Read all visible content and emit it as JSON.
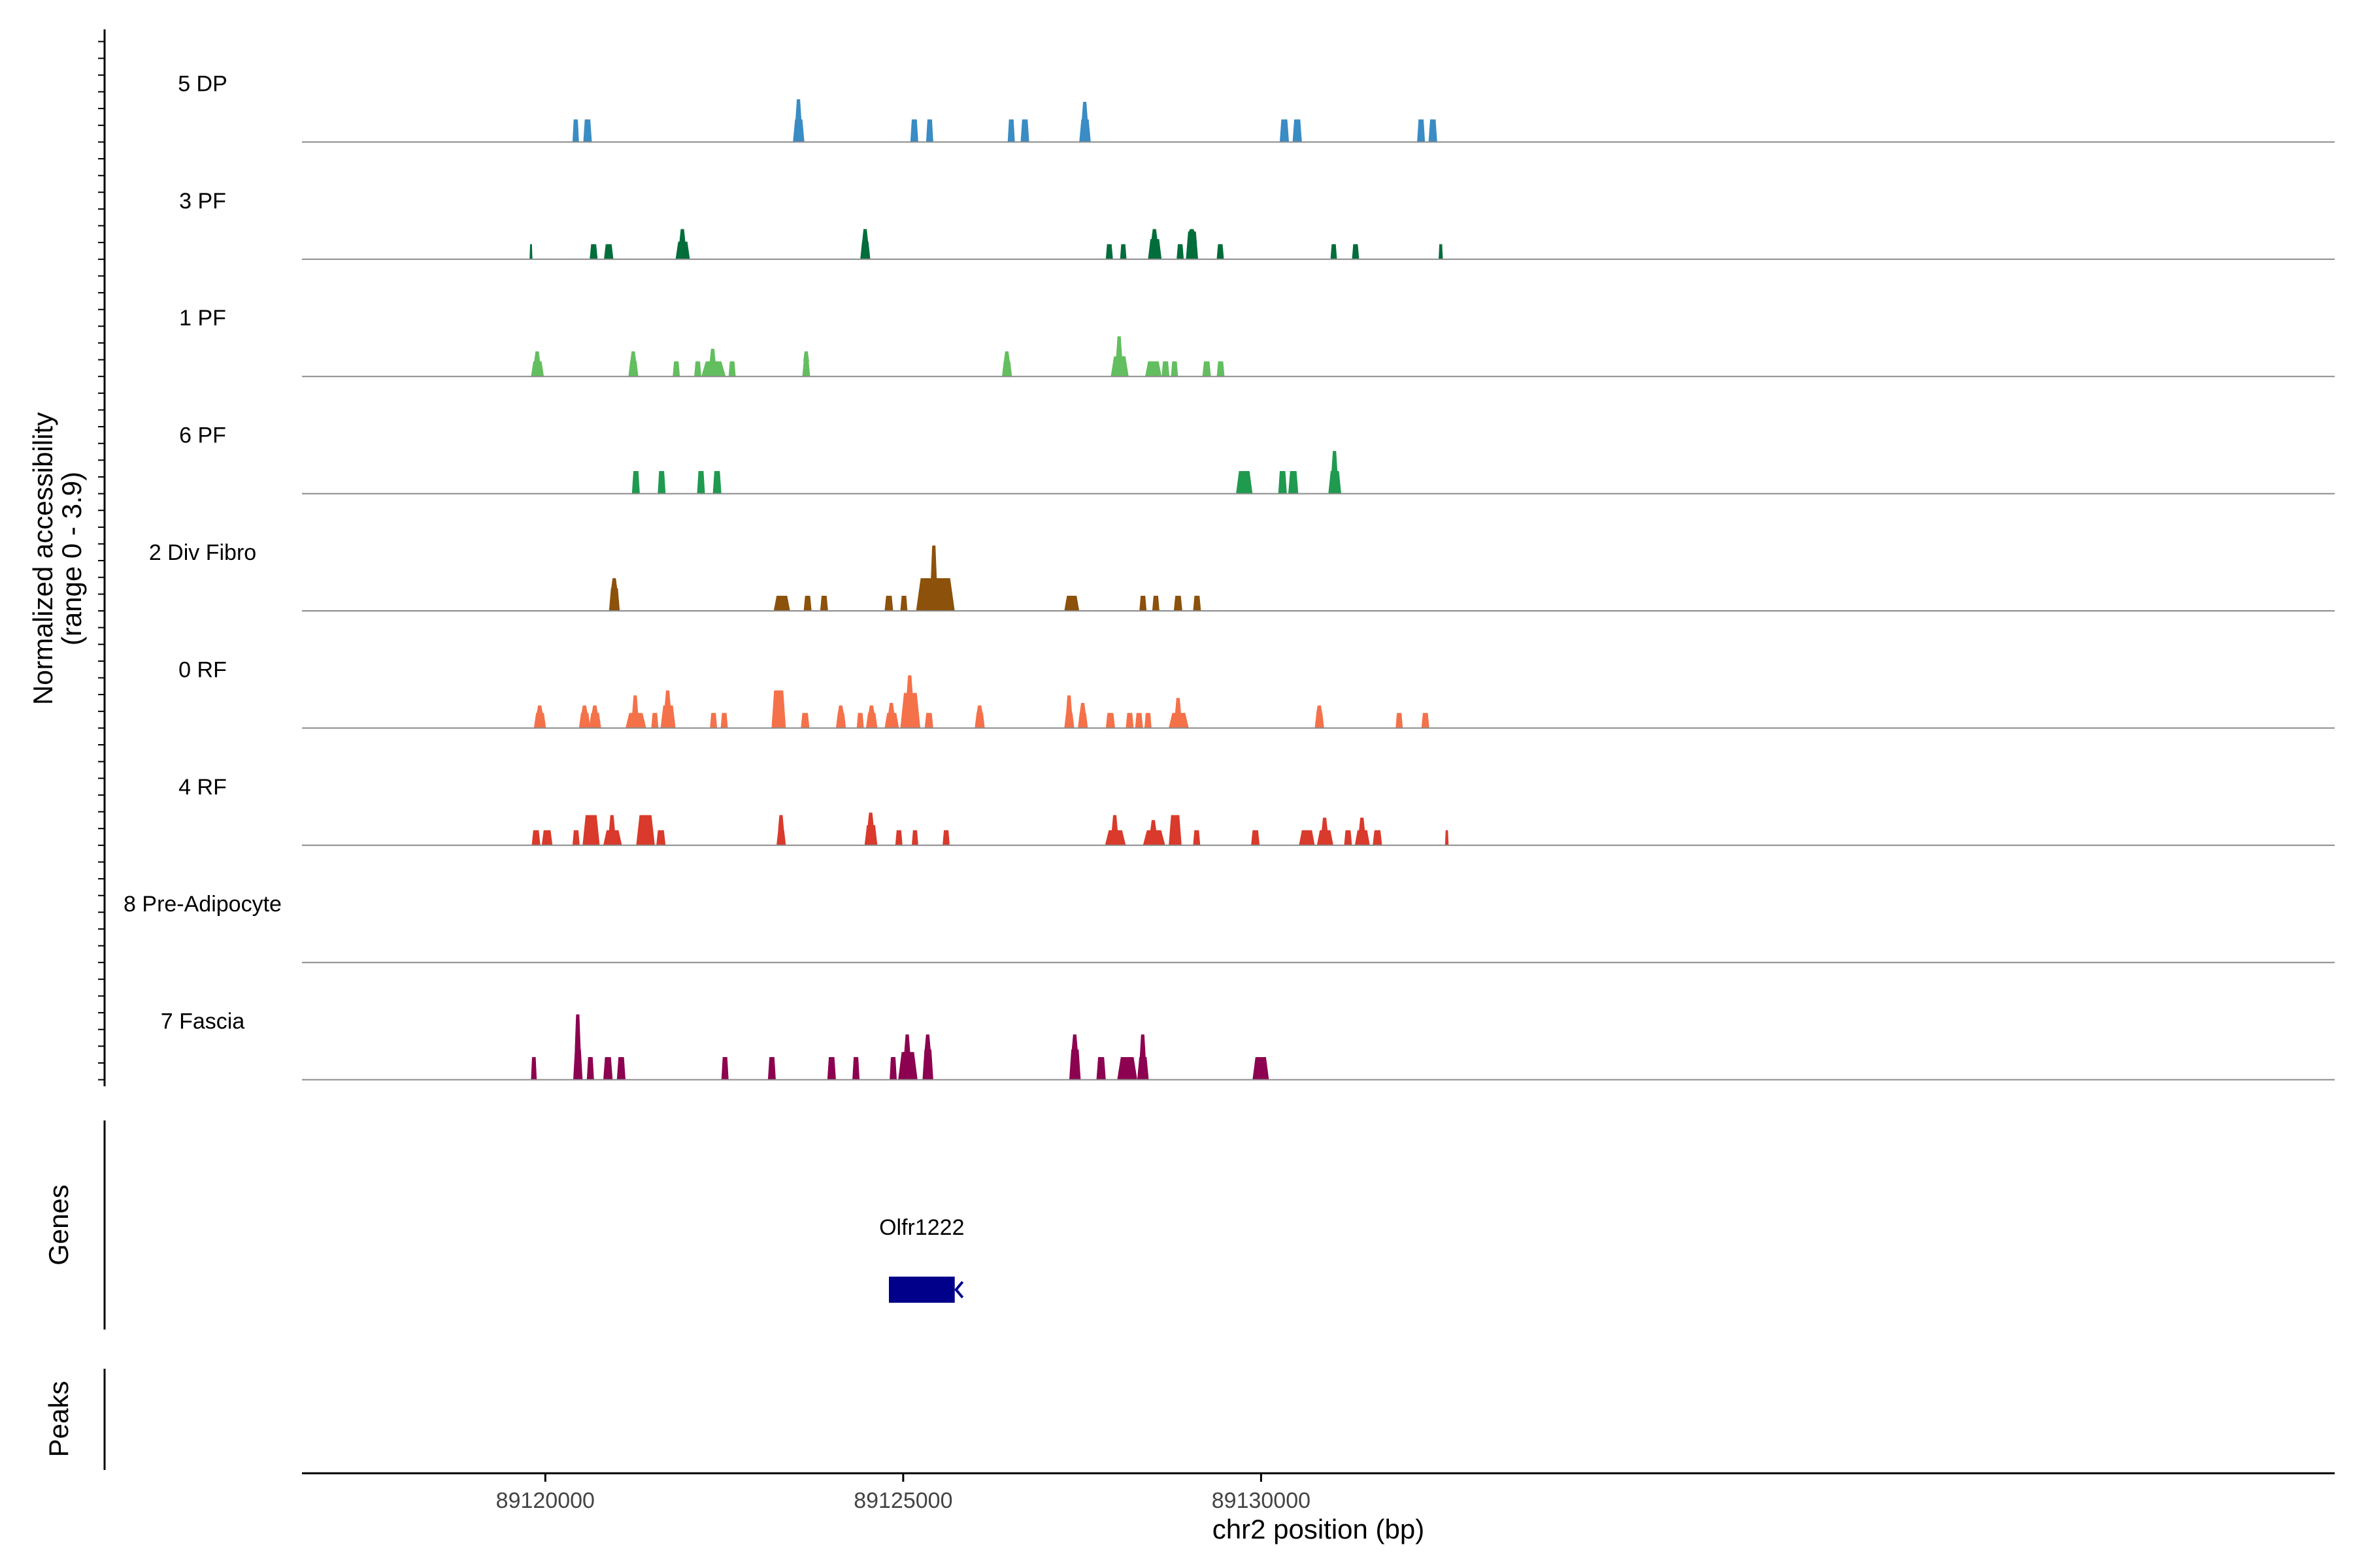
{
  "chart_data": {
    "type": "area",
    "title": "",
    "xlabel": "chr2 position (bp)",
    "ylabel_line1": "Normalized accessibility",
    "ylabel_line2": "(range 0 - 3.9)",
    "xlim": [
      89116600,
      89145000
    ],
    "x_ticks": [
      89120000,
      89125000,
      89130000
    ],
    "x_tick_labels": [
      "89120000",
      "89125000",
      "89130000"
    ],
    "y_range": [
      0,
      3.9
    ],
    "genes_label": "Genes",
    "peaks_label": "Peaks",
    "genes": [
      {
        "name": "Olfr1222",
        "start": 89124800,
        "end": 89125720,
        "strand": "-",
        "color": "#00008B"
      }
    ],
    "tracks": [
      {
        "name": "5 DP",
        "color": "#3A8CC4",
        "peaks": [
          [
            89120380,
            89120470,
            0.9
          ],
          [
            89120530,
            89120650,
            0.9
          ],
          [
            89123460,
            89123620,
            0.9,
            1.7
          ],
          [
            89125100,
            89125210,
            0.9
          ],
          [
            89125320,
            89125420,
            0.9
          ],
          [
            89126460,
            89126560,
            0.9
          ],
          [
            89126640,
            89126760,
            0.9
          ],
          [
            89127460,
            89127620,
            0.9,
            1.6
          ],
          [
            89130260,
            89130390,
            0.9
          ],
          [
            89130440,
            89130570,
            0.9
          ],
          [
            89132180,
            89132290,
            0.9
          ],
          [
            89132340,
            89132460,
            0.9
          ]
        ]
      },
      {
        "name": "3 PF",
        "color": "#006D3B",
        "peaks": [
          [
            89119780,
            89119820,
            0.6
          ],
          [
            89120620,
            89120730,
            0.6
          ],
          [
            89120820,
            89120950,
            0.6
          ],
          [
            89121820,
            89122020,
            0.7,
            1.2
          ],
          [
            89124400,
            89124540,
            0.7,
            1.2
          ],
          [
            89127830,
            89127930,
            0.6
          ],
          [
            89128030,
            89128120,
            0.6
          ],
          [
            89128420,
            89128610,
            0.8,
            1.2
          ],
          [
            89128820,
            89128920,
            0.6
          ],
          [
            89128950,
            89129120,
            1.1,
            1.2
          ],
          [
            89129380,
            89129480,
            0.6
          ],
          [
            89130970,
            89131060,
            0.6
          ],
          [
            89131270,
            89131370,
            0.6
          ],
          [
            89132480,
            89132540,
            0.6
          ]
        ]
      },
      {
        "name": "1 PF",
        "color": "#63BE5F",
        "peaks": [
          [
            89119800,
            89119980,
            0.6,
            1.0
          ],
          [
            89121160,
            89121300,
            0.6,
            1.0
          ],
          [
            89121780,
            89121880,
            0.6
          ],
          [
            89122080,
            89122180,
            0.6
          ],
          [
            89122180,
            89122520,
            0.6,
            1.1
          ],
          [
            89122560,
            89122660,
            0.6
          ],
          [
            89123590,
            89123700,
            0.6,
            1.0
          ],
          [
            89126380,
            89126520,
            0.6,
            1.0
          ],
          [
            89127900,
            89128150,
            0.8,
            1.6
          ],
          [
            89128380,
            89128610,
            0.6
          ],
          [
            89128610,
            89128720,
            0.6
          ],
          [
            89128740,
            89128840,
            0.6
          ],
          [
            89129180,
            89129300,
            0.6
          ],
          [
            89129380,
            89129490,
            0.6
          ]
        ]
      },
      {
        "name": "6 PF",
        "color": "#1F9A4F",
        "peaks": [
          [
            89121210,
            89121320,
            0.9
          ],
          [
            89121570,
            89121680,
            0.9
          ],
          [
            89122120,
            89122230,
            0.9
          ],
          [
            89122340,
            89122460,
            0.9
          ],
          [
            89129650,
            89129880,
            0.9
          ],
          [
            89130240,
            89130360,
            0.9
          ],
          [
            89130380,
            89130520,
            0.9
          ],
          [
            89130940,
            89131120,
            0.9,
            1.7
          ]
        ]
      },
      {
        "name": "2 Div Fibro",
        "color": "#8C510A",
        "peaks": [
          [
            89120890,
            89121040,
            0.9,
            1.3
          ],
          [
            89123190,
            89123420,
            0.6
          ],
          [
            89123610,
            89123720,
            0.6
          ],
          [
            89123840,
            89123950,
            0.6
          ],
          [
            89124740,
            89124860,
            0.6
          ],
          [
            89124960,
            89125060,
            0.6
          ],
          [
            89125180,
            89125720,
            1.3,
            2.6
          ],
          [
            89127250,
            89127460,
            0.6
          ],
          [
            89128300,
            89128400,
            0.6
          ],
          [
            89128480,
            89128580,
            0.6
          ],
          [
            89128780,
            89128900,
            0.6
          ],
          [
            89129050,
            89129160,
            0.6
          ]
        ]
      },
      {
        "name": "0 RF",
        "color": "#F4714A",
        "peaks": [
          [
            89119840,
            89120010,
            0.6,
            0.9
          ],
          [
            89120470,
            89120630,
            0.6,
            0.9
          ],
          [
            89120610,
            89120780,
            0.6,
            0.9
          ],
          [
            89121120,
            89121410,
            0.6,
            1.3
          ],
          [
            89121480,
            89121580,
            0.6
          ],
          [
            89121610,
            89121820,
            0.9,
            1.5
          ],
          [
            89122300,
            89122400,
            0.6
          ],
          [
            89122450,
            89122550,
            0.6
          ],
          [
            89123160,
            89123360,
            1.5
          ],
          [
            89123570,
            89123690,
            0.6
          ],
          [
            89124060,
            89124200,
            0.6,
            0.9
          ],
          [
            89124350,
            89124450,
            0.6
          ],
          [
            89124480,
            89124640,
            0.6,
            0.9
          ],
          [
            89124740,
            89124940,
            0.6,
            1.0
          ],
          [
            89124960,
            89125240,
            1.4,
            2.1
          ],
          [
            89125300,
            89125420,
            0.6
          ],
          [
            89126000,
            89126140,
            0.6,
            0.9
          ],
          [
            89127250,
            89127390,
            0.6,
            1.3
          ],
          [
            89127440,
            89127580,
            0.6,
            1.0
          ],
          [
            89127830,
            89127960,
            0.6
          ],
          [
            89128110,
            89128220,
            0.6
          ],
          [
            89128240,
            89128350,
            0.6
          ],
          [
            89128370,
            89128470,
            0.6
          ],
          [
            89128710,
            89128990,
            0.6,
            1.2
          ],
          [
            89130750,
            89130880,
            0.6,
            0.9
          ],
          [
            89131880,
            89131980,
            0.6
          ],
          [
            89132240,
            89132350,
            0.6
          ]
        ]
      },
      {
        "name": "4 RF",
        "color": "#D93A2B",
        "peaks": [
          [
            89119810,
            89119930,
            0.6
          ],
          [
            89119950,
            89120100,
            0.6
          ],
          [
            89120380,
            89120480,
            0.6
          ],
          [
            89120520,
            89120760,
            1.2
          ],
          [
            89120810,
            89121070,
            0.6,
            1.2
          ],
          [
            89121270,
            89121530,
            1.2
          ],
          [
            89121550,
            89121680,
            0.6
          ],
          [
            89123230,
            89123360,
            0.6,
            1.2
          ],
          [
            89124460,
            89124640,
            0.8,
            1.3
          ],
          [
            89124890,
            89124990,
            0.6
          ],
          [
            89125120,
            89125210,
            0.6
          ],
          [
            89125550,
            89125650,
            0.6
          ],
          [
            89127820,
            89128110,
            0.6,
            1.2
          ],
          [
            89128350,
            89128660,
            0.6,
            1.0
          ],
          [
            89128710,
            89128890,
            1.2
          ],
          [
            89129050,
            89129150,
            0.6
          ],
          [
            89129860,
            89129980,
            0.6
          ],
          [
            89130530,
            89130750,
            0.6
          ],
          [
            89130780,
            89131010,
            0.6,
            1.1
          ],
          [
            89131160,
            89131270,
            0.6
          ],
          [
            89131310,
            89131520,
            0.6,
            1.1
          ],
          [
            89131560,
            89131690,
            0.6
          ],
          [
            89132570,
            89132620,
            0.6
          ]
        ]
      },
      {
        "name": "8 Pre-Adipocyte",
        "color": "#7A7A7A",
        "peaks": []
      },
      {
        "name": "7 Fascia",
        "color": "#8C0250",
        "peaks": [
          [
            89119800,
            89119880,
            0.9
          ],
          [
            89120390,
            89120520,
            1.2,
            2.6
          ],
          [
            89120580,
            89120680,
            0.9
          ],
          [
            89120810,
            89120940,
            0.9
          ],
          [
            89121000,
            89121120,
            0.9
          ],
          [
            89122460,
            89122560,
            0.9
          ],
          [
            89123110,
            89123220,
            0.9
          ],
          [
            89123940,
            89124060,
            0.9
          ],
          [
            89124290,
            89124390,
            0.9
          ],
          [
            89124810,
            89124910,
            0.9
          ],
          [
            89124930,
            89125200,
            1.1,
            1.8
          ],
          [
            89125270,
            89125420,
            1.2,
            1.8
          ],
          [
            89127320,
            89127480,
            1.2,
            1.8
          ],
          [
            89127700,
            89127830,
            0.9
          ],
          [
            89127990,
            89128270,
            0.9
          ],
          [
            89128270,
            89128430,
            0.9,
            1.8
          ],
          [
            89129880,
            89130110,
            0.9
          ]
        ]
      }
    ]
  }
}
